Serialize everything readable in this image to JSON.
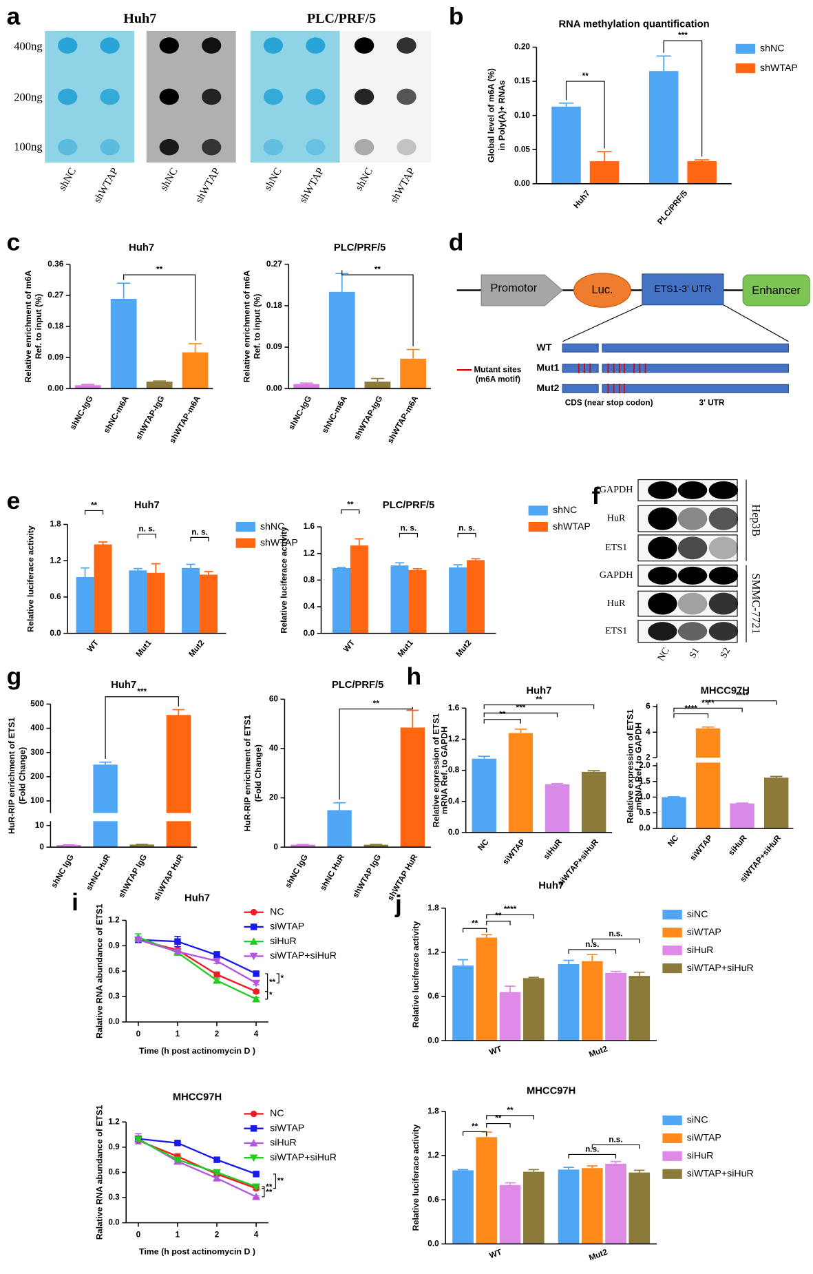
{
  "panel_labels": [
    "a",
    "b",
    "c",
    "d",
    "e",
    "f",
    "g",
    "h",
    "i",
    "j"
  ],
  "dot_blot": {
    "cell_lines": [
      "Huh7",
      "PLC/PRF/5"
    ],
    "amounts": [
      "400ng",
      "200ng",
      "100ng"
    ],
    "lanes": [
      "shNC",
      "shWTAP",
      "shNC",
      "shWTAP",
      "shNC",
      "shWTAP",
      "shNC",
      "shWTAP"
    ]
  },
  "diagram": {
    "promoter": "Promotor",
    "luc": "Luc.",
    "utr": "ETS1-3' UTR",
    "enhancer": "Enhancer",
    "constructs": [
      "WT",
      "Mut1",
      "Mut2"
    ],
    "legend": [
      "Mutant sites",
      "(m6A motif)"
    ],
    "regions": [
      "CDS (near stop codon)",
      "3' UTR"
    ]
  },
  "western_blot": {
    "blocks": [
      {
        "cell_line": "Hep3B",
        "proteins": [
          "GAPDH",
          "HuR",
          "ETS1"
        ]
      },
      {
        "cell_line": "SMMC-7721",
        "proteins": [
          "GAPDH",
          "HuR",
          "ETS1"
        ]
      }
    ],
    "lanes": [
      "NC",
      "S1",
      "S2"
    ]
  },
  "chart_data": [
    {
      "type": "bar",
      "title": "RNA methylation quantification",
      "ylabel": [
        "Global level of m6A (%)",
        "in Poly(A)+ RNAs"
      ],
      "categories": [
        "Huh7",
        "PLC/PRF/5"
      ],
      "series": [
        {
          "name": "shNC",
          "color": "#4fa6f5",
          "values": [
            0.113,
            0.165
          ],
          "errors": [
            0.005,
            0.022
          ]
        },
        {
          "name": "shWTAP",
          "color": "#ff6611",
          "values": [
            0.033,
            0.033
          ],
          "errors": [
            0.014,
            0.002
          ]
        }
      ],
      "ylim": [
        0,
        0.2
      ],
      "yticks": [
        {
          "value": 0,
          "label": "0.00"
        },
        0.05,
        {
          "value": 0.1,
          "label": "0.10"
        },
        0.15,
        {
          "value": 0.2,
          "label": "0.20"
        }
      ],
      "annotations": [
        "**",
        "***"
      ]
    },
    {
      "type": "bar",
      "title": "Huh7",
      "ylabel": [
        "Relative enrichment of m6A",
        "Ref. to input (%)"
      ],
      "categories": [
        "shNC-IgG",
        "shNC-m6A",
        "shWTAP-IgG",
        "shWTAP-m6A"
      ],
      "series": [
        {
          "colors": [
            "#d87ee0",
            "#4fa6f5",
            "#8b7a3a",
            "#ff8a1a"
          ],
          "values": [
            0.01,
            0.26,
            0.02,
            0.105
          ],
          "errors": [
            0.002,
            0.045,
            0.002,
            0.025
          ]
        }
      ],
      "ylim": [
        0,
        0.36
      ],
      "yticks": [
        {
          "value": 0,
          "label": "0.00"
        },
        0.09,
        0.18,
        0.27,
        0.36
      ],
      "annotations": [
        "**"
      ]
    },
    {
      "type": "bar",
      "title": "PLC/PRF/5",
      "ylabel": [
        "Relative enrichment of m6A",
        "Ref. to input (%)"
      ],
      "categories": [
        "shNC-IgG",
        "shNC-m6A",
        "shWTAP-IgG",
        "shWTAP-m6A"
      ],
      "series": [
        {
          "colors": [
            "#d87ee0",
            "#4fa6f5",
            "#8b7a3a",
            "#ff8a1a"
          ],
          "values": [
            0.01,
            0.21,
            0.015,
            0.065
          ],
          "errors": [
            0.002,
            0.04,
            0.007,
            0.02
          ]
        }
      ],
      "ylim": [
        0,
        0.27
      ],
      "yticks": [
        {
          "value": 0,
          "label": "0.00"
        },
        0.09,
        0.18,
        0.27
      ],
      "annotations": [
        "**"
      ]
    },
    {
      "type": "bar",
      "title": "Huh7",
      "ylabel": [
        "Relative luciferace activity"
      ],
      "categories": [
        "WT",
        "Mut1",
        "Mut2"
      ],
      "series": [
        {
          "name": "shNC",
          "color": "#4fa6f5",
          "values": [
            0.93,
            1.04,
            1.08
          ],
          "errors": [
            0.15,
            0.03,
            0.06
          ]
        },
        {
          "name": "shWTAP",
          "color": "#ff6611",
          "values": [
            1.47,
            1.0,
            0.97
          ],
          "errors": [
            0.04,
            0.15,
            0.05
          ]
        }
      ],
      "ylim": [
        0,
        1.8
      ],
      "yticks": [
        {
          "value": 0,
          "label": "0.0"
        },
        0.6,
        1.2,
        1.8
      ],
      "annotations": [
        "**",
        "n. s.",
        "n. s."
      ]
    },
    {
      "type": "bar",
      "title": "PLC/PRF/5",
      "ylabel": [
        "Relative luciferace activity"
      ],
      "categories": [
        "WT",
        "Mut1",
        "Mut2"
      ],
      "series": [
        {
          "name": "shNC",
          "color": "#4fa6f5",
          "values": [
            0.98,
            1.02,
            0.99
          ],
          "errors": [
            0.01,
            0.04,
            0.04
          ]
        },
        {
          "name": "shWTAP",
          "color": "#ff6611",
          "values": [
            1.32,
            0.95,
            1.1
          ],
          "errors": [
            0.1,
            0.02,
            0.02
          ]
        }
      ],
      "ylim": [
        0,
        1.6
      ],
      "yticks": [
        {
          "value": 0,
          "label": "0.0"
        },
        0.4,
        0.8,
        1.2,
        1.6
      ],
      "annotations": [
        "**",
        "n. s.",
        "n. s."
      ]
    },
    {
      "type": "bar",
      "title": "Huh7",
      "ylabel": [
        "HuR-RIP enrichment of ETS1",
        "(Fold Change)"
      ],
      "categories": [
        "shNC IgG",
        "shNC HuR",
        "shWTAP IgG",
        "shWTAP HuR"
      ],
      "series": [
        {
          "colors": [
            "#d87ee0",
            "#4fa6f5",
            "#8b7a3a",
            "#ff6611"
          ],
          "values": [
            1,
            250,
            1.2,
            455
          ],
          "errors": [
            0.1,
            10,
            0.1,
            22
          ]
        }
      ],
      "ylim": [
        [
          0,
          12
        ],
        [
          50,
          500
        ]
      ],
      "yticks": [
        [
          0,
          10
        ],
        [
          100,
          200,
          300,
          400,
          500
        ]
      ],
      "annotations": [
        "***"
      ]
    },
    {
      "type": "bar",
      "title": "PLC/PRF/5",
      "ylabel": [
        "HuR-RIP enrichment of ETS1",
        "(Fold Change)"
      ],
      "categories": [
        "shNC IgG",
        "shNC HuR",
        "shWTAP IgG",
        "shWTAP HuR"
      ],
      "series": [
        {
          "colors": [
            "#d87ee0",
            "#4fa6f5",
            "#8b7a3a",
            "#ff6611"
          ],
          "values": [
            1,
            15,
            1,
            48.5
          ],
          "errors": [
            0.1,
            3,
            0.1,
            7
          ]
        }
      ],
      "ylim": [
        0,
        60
      ],
      "yticks": [
        0,
        20,
        40,
        60
      ],
      "annotations": [
        "**"
      ]
    },
    {
      "type": "bar",
      "title": "Huh7",
      "ylabel": [
        "Relative expression of ETS1",
        "mRNA Ref. to GAPDH"
      ],
      "categories": [
        "NC",
        "siWTAP",
        "siHuR",
        "siWTAP+siHuR"
      ],
      "series": [
        {
          "colors": [
            "#4fa6f5",
            "#ff8a1a",
            "#d88ae8",
            "#8b7a3a"
          ],
          "values": [
            0.95,
            1.28,
            0.62,
            0.78
          ],
          "errors": [
            0.03,
            0.05,
            0.01,
            0.015
          ]
        }
      ],
      "ylim": [
        0,
        1.6
      ],
      "yticks": [
        {
          "value": 0,
          "label": "0.0"
        },
        0.4,
        0.8,
        1.2,
        1.6
      ],
      "annotations": [
        "**",
        "***",
        "**"
      ]
    },
    {
      "type": "bar",
      "title": "MHCC97H",
      "ylabel": [
        "Relative expression of ETS1",
        "mRNA Ref. to GAPDH"
      ],
      "categories": [
        "NC",
        "siWTAP",
        "siHuR",
        "siWTAP+siHuR"
      ],
      "series": [
        {
          "colors": [
            "#4fa6f5",
            "#ff8a1a",
            "#d88ae8",
            "#8b7a3a"
          ],
          "values": [
            1,
            4.3,
            0.8,
            1.62
          ],
          "errors": [
            0.01,
            0.1,
            0.01,
            0.04
          ]
        }
      ],
      "ylim": [
        [
          0,
          2.1
        ],
        [
          2,
          6.2
        ]
      ],
      "yticks": [
        [
          {
            "value": 0,
            "label": "0.0"
          },
          0.5,
          {
            "value": 1,
            "label": "1.0"
          },
          1.5,
          {
            "value": 2,
            "label": "2.0"
          }
        ],
        [
          2,
          4,
          6
        ]
      ],
      "annotations": [
        "****",
        "****",
        "****"
      ]
    },
    {
      "type": "line",
      "title": "Huh7",
      "ylabel": [
        "Ralative RNA abundance of ETS1"
      ],
      "xlabel": "Time (h post actinomycin D )",
      "categories": [
        "0",
        "1",
        "2",
        "4"
      ],
      "series": [
        {
          "name": "NC",
          "color": "#ee1c25",
          "marker": "circle",
          "values": [
            0.97,
            0.85,
            0.56,
            0.36
          ],
          "errors": [
            0.02,
            0.02,
            0.03,
            0.02
          ]
        },
        {
          "name": "siWTAP",
          "color": "#1a1aee",
          "marker": "square",
          "values": [
            0.97,
            0.95,
            0.79,
            0.57
          ],
          "errors": [
            0.03,
            0.06,
            0.04,
            0.02
          ]
        },
        {
          "name": "siHuR",
          "color": "#22cc22",
          "marker": "triangle-up",
          "values": [
            1.0,
            0.82,
            0.49,
            0.27
          ],
          "errors": [
            0.04,
            0.02,
            0.02,
            0.02
          ]
        },
        {
          "name": "siWTAP+siHuR",
          "color": "#b455e0",
          "marker": "triangle-down",
          "values": [
            0.97,
            0.83,
            0.72,
            0.46
          ],
          "errors": [
            0.02,
            0.02,
            0.03,
            0.02
          ]
        }
      ],
      "ylim": [
        0,
        1.2
      ],
      "yticks": [
        {
          "value": 0,
          "label": "0.0"
        },
        0.3,
        0.6,
        0.9,
        1.2
      ],
      "annotations": [
        "**",
        "*",
        "*"
      ]
    },
    {
      "type": "line",
      "title": "MHCC97H",
      "ylabel": [
        "Ralative RNA abundance of ETS1"
      ],
      "xlabel": "Time (h post actinomycin D )",
      "categories": [
        "0",
        "1",
        "2",
        "4"
      ],
      "series": [
        {
          "name": "NC",
          "color": "#ee1c25",
          "marker": "circle",
          "values": [
            0.98,
            0.79,
            0.58,
            0.41
          ],
          "errors": [
            0.02,
            0.03,
            0.02,
            0.02
          ]
        },
        {
          "name": "siWTAP",
          "color": "#1a1aee",
          "marker": "square",
          "values": [
            1.0,
            0.95,
            0.75,
            0.58
          ],
          "errors": [
            0.02,
            0.01,
            0.01,
            0.01
          ]
        },
        {
          "name": "siHuR",
          "color": "#b455e0",
          "marker": "triangle-up",
          "values": [
            1.0,
            0.73,
            0.53,
            0.31
          ],
          "errors": [
            0.06,
            0.02,
            0.02,
            0.01
          ]
        },
        {
          "name": "siWTAP+siHuR",
          "color": "#22cc22",
          "marker": "triangle-down",
          "values": [
            0.99,
            0.75,
            0.6,
            0.43
          ],
          "errors": [
            0.02,
            0.02,
            0.02,
            0.02
          ]
        }
      ],
      "ylim": [
        0,
        1.2
      ],
      "yticks": [
        {
          "value": 0,
          "label": "0.0"
        },
        0.3,
        0.6,
        0.9,
        1.2
      ],
      "annotations": [
        "**",
        "**",
        "**"
      ]
    },
    {
      "type": "bar",
      "title": "Huh7",
      "ylabel": [
        "Relative luciferace activity"
      ],
      "categories": [
        "WT",
        "Mut2"
      ],
      "series": [
        {
          "name": "siNC",
          "color": "#4fa6f5",
          "values": [
            1.02,
            1.04
          ],
          "errors": [
            0.08,
            0.05
          ]
        },
        {
          "name": "siWTAP",
          "color": "#ff8a1a",
          "values": [
            1.4,
            1.08
          ],
          "errors": [
            0.04,
            0.09
          ]
        },
        {
          "name": "siHuR",
          "color": "#e08ae8",
          "values": [
            0.66,
            0.92
          ],
          "errors": [
            0.08,
            0.02
          ]
        },
        {
          "name": "siWTAP+siHuR",
          "color": "#8b7a3a",
          "values": [
            0.85,
            0.88
          ],
          "errors": [
            0.01,
            0.05
          ]
        }
      ],
      "ylim": [
        0,
        1.8
      ],
      "yticks": [
        {
          "value": 0,
          "label": "0.0"
        },
        0.6,
        1.2,
        1.8
      ],
      "annotations": [
        "**",
        "**",
        "****",
        "n.s.",
        "n.s."
      ]
    },
    {
      "type": "bar",
      "title": "MHCC97H",
      "ylabel": [
        "Relative luciferace activity"
      ],
      "categories": [
        "WT",
        "Mut2"
      ],
      "series": [
        {
          "name": "siNC",
          "color": "#4fa6f5",
          "values": [
            1.0,
            1.01
          ],
          "errors": [
            0.01,
            0.03
          ]
        },
        {
          "name": "siWTAP",
          "color": "#ff8a1a",
          "values": [
            1.45,
            1.03
          ],
          "errors": [
            0.07,
            0.03
          ]
        },
        {
          "name": "siHuR",
          "color": "#e08ae8",
          "values": [
            0.8,
            1.09
          ],
          "errors": [
            0.03,
            0.03
          ]
        },
        {
          "name": "siWTAP+siHuR",
          "color": "#8b7a3a",
          "values": [
            0.98,
            0.97
          ],
          "errors": [
            0.03,
            0.03
          ]
        }
      ],
      "ylim": [
        0,
        1.8
      ],
      "yticks": [
        {
          "value": 0,
          "label": "0.0"
        },
        0.6,
        1.2,
        1.8
      ],
      "annotations": [
        "**",
        "**",
        "**",
        "n.s.",
        "n.s."
      ]
    }
  ]
}
